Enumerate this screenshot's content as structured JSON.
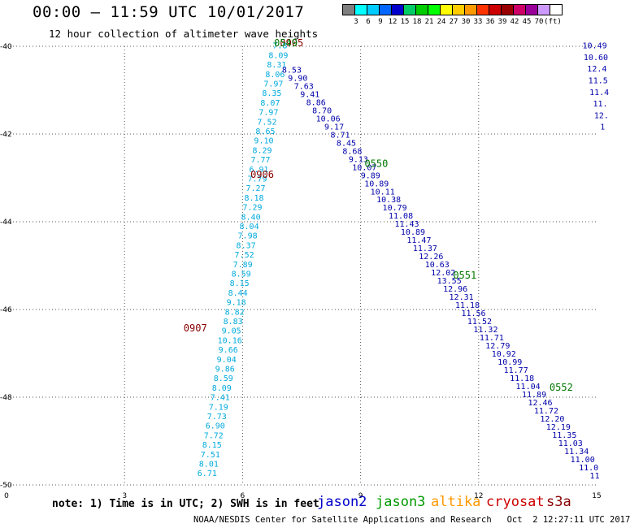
{
  "header": {
    "title": "00:00 – 11:59 UTC 10/01/2017",
    "subtitle": "12 hour collection of altimeter wave heights"
  },
  "colorbar": {
    "unit_label": "(ft)",
    "colors": [
      "#7f7f7f",
      "#00ffff",
      "#00ccff",
      "#0066ff",
      "#0000cc",
      "#00cc66",
      "#00cc00",
      "#00ff00",
      "#ffff00",
      "#ffcc00",
      "#ff9900",
      "#ff3300",
      "#cc0000",
      "#990000",
      "#cc0066",
      "#990099",
      "#cc99ff",
      "#ffffff"
    ],
    "labels": [
      "3",
      "6",
      "9",
      "12",
      "15",
      "18",
      "21",
      "24",
      "27",
      "30",
      "33",
      "36",
      "39",
      "42",
      "45",
      "70"
    ]
  },
  "map": {
    "x_ticks": [
      "0",
      "3",
      "6",
      "9",
      "12",
      "15"
    ],
    "y_ticks": [
      "-40",
      "-42",
      "-44",
      "-46",
      "-48",
      "-50"
    ],
    "x_range": [
      0,
      15
    ],
    "y_range": [
      -50,
      -40
    ],
    "grid": "dotted",
    "orbit_labels": [
      {
        "text": "0906",
        "satellite": "cryosat",
        "x": 6.2,
        "y": -43.0
      },
      {
        "text": "0907",
        "satellite": "cryosat",
        "x": 4.5,
        "y": -46.5
      },
      {
        "text": "0905",
        "satellite": "cryosat",
        "x": 6.95,
        "y": -40.0
      },
      {
        "text": "0549",
        "satellite": "jason3",
        "x": 6.8,
        "y": -40.0
      },
      {
        "text": "0550",
        "satellite": "jason3",
        "x": 9.1,
        "y": -42.75
      },
      {
        "text": "0551",
        "satellite": "jason3",
        "x": 11.35,
        "y": -45.3
      },
      {
        "text": "0552",
        "satellite": "jason3",
        "x": 13.8,
        "y": -47.85
      }
    ],
    "tracks": [
      {
        "satellite": "cryosat",
        "color": "#00aadd",
        "values": [
          "7.8",
          "8.09",
          "8.31",
          "8.06",
          "7.97",
          "8.35",
          "8.07",
          "7.97",
          "7.52",
          "8.65",
          "9.10",
          "8.29",
          "7.77",
          "6.91",
          "7.79",
          "7.27",
          "8.18",
          "7.29",
          "8.40",
          "8.04",
          "7.98",
          "8.37",
          "7.52",
          "7.89",
          "8.59",
          "8.15",
          "8.44",
          "9.18",
          "8.82",
          "8.83",
          "9.05",
          "10.16",
          "9.66",
          "9.04",
          "9.86",
          "8.59",
          "8.09",
          "7.41",
          "7.19",
          "7.73",
          "6.90",
          "7.72",
          "8.15",
          "7.51",
          "8.01",
          "6.71"
        ]
      },
      {
        "satellite": "jason2",
        "color": "#0000aa",
        "values": [
          "8.53",
          "9.90",
          "7.63",
          "9.41",
          "8.86",
          "8.70",
          "10.06",
          "9.17",
          "8.71",
          "8.45",
          "8.68",
          "9.13",
          "10.07",
          "9.89",
          "10.89",
          "10.11",
          "10.38",
          "10.79",
          "11.08",
          "11.43",
          "10.89",
          "11.47",
          "11.37",
          "12.26",
          "10.63",
          "12.02",
          "13.55",
          "12.96",
          "12.31",
          "11.18",
          "11.56",
          "11.52",
          "11.32",
          "11.71",
          "12.79",
          "10.92",
          "10.99",
          "11.77",
          "11.18",
          "11.04",
          "11.89",
          "12.46",
          "11.72",
          "12.20",
          "12.19",
          "11.35",
          "11.03",
          "11.34",
          "11.00",
          "11.0",
          "11"
        ]
      },
      {
        "satellite": "jason2",
        "color": "#0000aa",
        "values": [
          "10.49",
          "10.60",
          "12.4",
          "11.5",
          "11.4",
          "11.",
          "12.",
          "1"
        ]
      }
    ]
  },
  "footer": {
    "note": "note: 1) Time is in UTC; 2) SWH is in feet",
    "satellites": [
      {
        "name": "jason2",
        "color": "#0000cc"
      },
      {
        "name": "jason3",
        "color": "#009900"
      },
      {
        "name": "altika",
        "color": "#ff9900"
      },
      {
        "name": "cryosat",
        "color": "#cc0000"
      },
      {
        "name": "s3a",
        "color": "#880000"
      }
    ],
    "credit": "NOAA/NESDIS Center for Satellite Applications and Research   Oct  2 12:27:11 UTC 2017"
  }
}
